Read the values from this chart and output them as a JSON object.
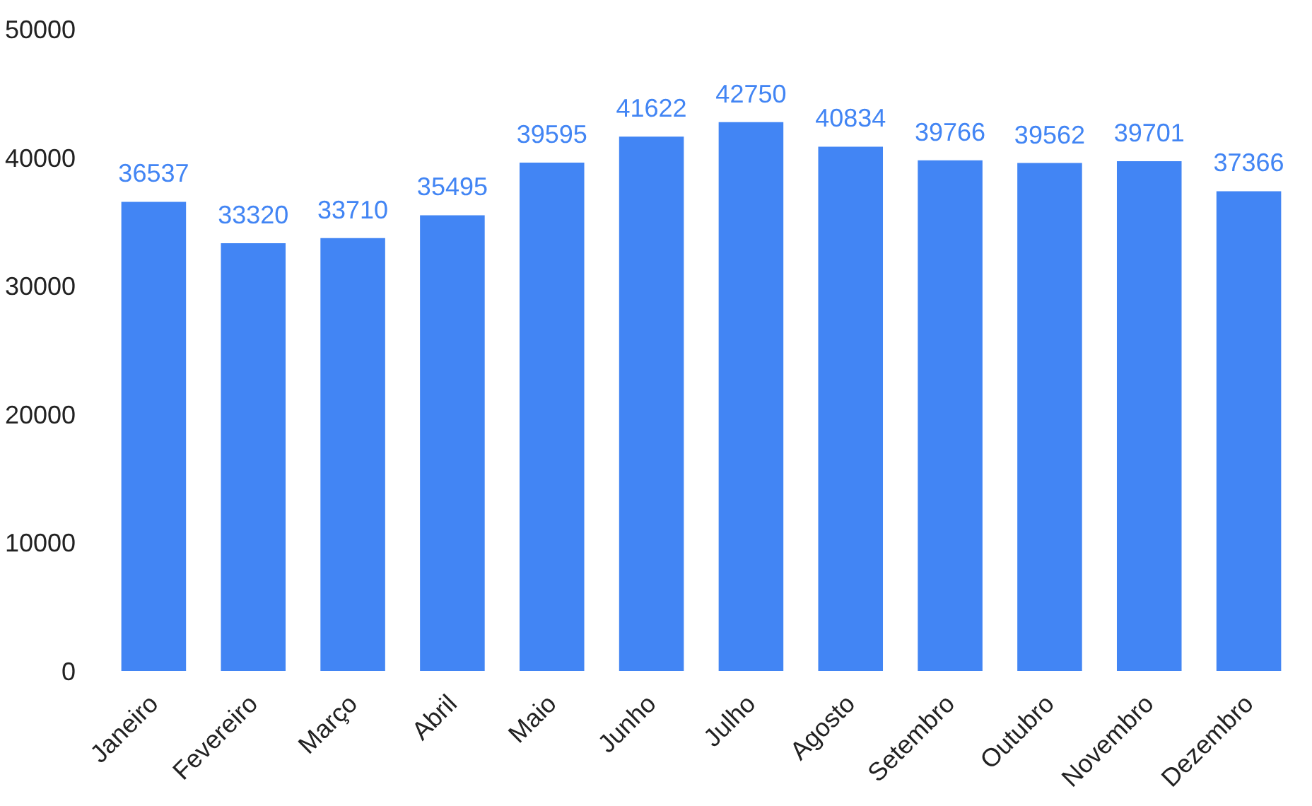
{
  "chart_data": {
    "type": "bar",
    "categories": [
      "Janeiro",
      "Fevereiro",
      "Março",
      "Abril",
      "Maio",
      "Junho",
      "Julho",
      "Agosto",
      "Setembro",
      "Outubro",
      "Novembro",
      "Dezembro"
    ],
    "values": [
      36537,
      33320,
      33710,
      35495,
      39595,
      41622,
      42750,
      40834,
      39766,
      39562,
      39701,
      37366
    ],
    "color": "#4285f4",
    "ylim": [
      0,
      50000
    ],
    "yticks": [
      0,
      10000,
      20000,
      30000,
      40000,
      50000
    ],
    "grid": false,
    "data_labels": true
  }
}
